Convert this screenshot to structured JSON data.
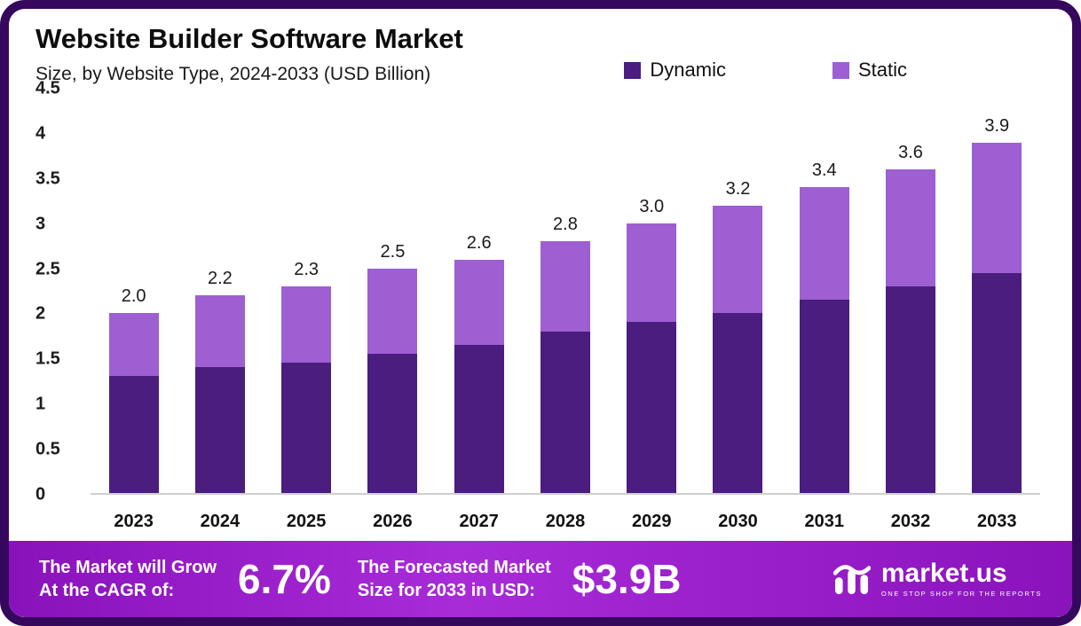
{
  "header": {
    "title": "Website Builder Software Market",
    "subtitle": "Size, by Website Type, 2024-2033 (USD Billion)"
  },
  "legend": [
    {
      "label": "Dynamic",
      "color": "#4a1d7f"
    },
    {
      "label": "Static",
      "color": "#9d5fd2"
    }
  ],
  "chart_data": {
    "type": "bar",
    "stacked": true,
    "title": "Website Builder Software Market Size, by Website Type, 2024-2033 (USD Billion)",
    "categories": [
      "2023",
      "2024",
      "2025",
      "2026",
      "2027",
      "2028",
      "2029",
      "2030",
      "2031",
      "2032",
      "2033"
    ],
    "series": [
      {
        "name": "Dynamic",
        "color": "#4a1d7f",
        "values": [
          1.3,
          1.4,
          1.45,
          1.55,
          1.65,
          1.8,
          1.9,
          2.0,
          2.15,
          2.3,
          2.45
        ]
      },
      {
        "name": "Static",
        "color": "#9d5fd2",
        "values": [
          0.7,
          0.8,
          0.85,
          0.95,
          0.95,
          1.0,
          1.1,
          1.2,
          1.25,
          1.3,
          1.45
        ]
      }
    ],
    "totals": [
      2.0,
      2.2,
      2.3,
      2.5,
      2.6,
      2.8,
      3.0,
      3.2,
      3.4,
      3.6,
      3.9
    ],
    "total_labels": [
      "2.0",
      "2.2",
      "2.3",
      "2.5",
      "2.6",
      "2.8",
      "3.0",
      "3.2",
      "3.4",
      "3.6",
      "3.9"
    ],
    "xlabel": "",
    "ylabel": "",
    "ylim": [
      0,
      4.5
    ],
    "yticks": [
      0,
      0.5,
      1,
      1.5,
      2,
      2.5,
      3,
      3.5,
      4,
      4.5
    ],
    "ytick_labels": [
      "0",
      "0.5",
      "1",
      "1.5",
      "2",
      "2.5",
      "3",
      "3.5",
      "4",
      "4.5"
    ],
    "grid": false,
    "legend_position": "top-right"
  },
  "footer": {
    "cagr_label_line1": "The Market will Grow",
    "cagr_label_line2": "At the CAGR of:",
    "cagr_value": "6.7%",
    "forecast_label_line1": "The Forecasted Market",
    "forecast_label_line2": "Size for 2033 in USD:",
    "forecast_value": "$3.9B",
    "brand": "market.us",
    "brand_tagline": "ONE STOP SHOP FOR THE REPORTS"
  },
  "colors": {
    "frame_border": "#35085e",
    "banner_gradient_start": "#8912bb",
    "banner_gradient_mid": "#a82bd8",
    "axis_baseline": "#cfcfcf"
  }
}
